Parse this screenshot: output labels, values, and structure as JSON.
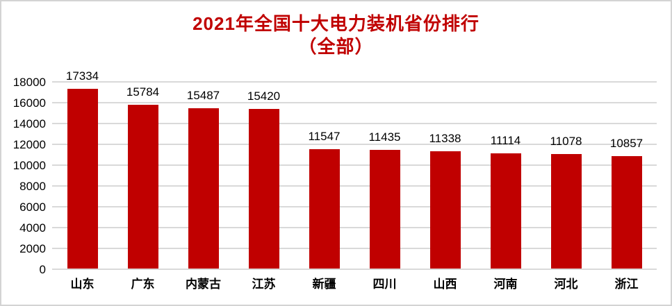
{
  "chart": {
    "title_line1": "2021年全国十大电力装机省份排行",
    "title_line2": "（全部）"
  },
  "chart_data": {
    "type": "bar",
    "title": "2021年全国十大电力装机省份排行（全部）",
    "categories": [
      "山东",
      "广东",
      "内蒙古",
      "江苏",
      "新疆",
      "四川",
      "山西",
      "河南",
      "河北",
      "浙江"
    ],
    "values": [
      17334,
      15784,
      15487,
      15420,
      11547,
      11435,
      11338,
      11114,
      11078,
      10857
    ],
    "xlabel": "",
    "ylabel": "",
    "ylim": [
      0,
      18000
    ],
    "yticks": [
      0,
      2000,
      4000,
      6000,
      8000,
      10000,
      12000,
      14000,
      16000,
      18000
    ],
    "grid": true,
    "legend": false,
    "data_labels": true,
    "colors": {
      "bar": "#c00000",
      "title_text": "#c00000",
      "gridline": "#d9d9d9",
      "axis_line": "#d9d9d9",
      "label_text": "#000000",
      "background": "#ffffff",
      "border": "#d3d3d3"
    }
  }
}
